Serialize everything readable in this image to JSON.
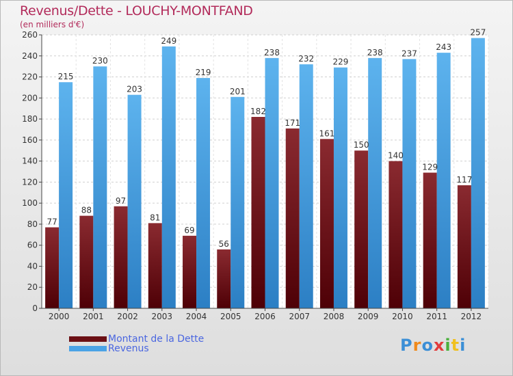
{
  "chart_data": {
    "type": "bar",
    "title": "Revenus/Dette - LOUCHY-MONTFAND",
    "subtitle": "(en milliers d'€)",
    "categories": [
      "2000",
      "2001",
      "2002",
      "2003",
      "2004",
      "2005",
      "2006",
      "2007",
      "2008",
      "2009",
      "2010",
      "2011",
      "2012"
    ],
    "series": [
      {
        "name": "Montant de la Dette",
        "color": "#6b0f14",
        "values": [
          77,
          88,
          97,
          81,
          69,
          56,
          182,
          171,
          161,
          150,
          140,
          129,
          117
        ]
      },
      {
        "name": "Revenus",
        "color": "#4aa3e6",
        "values": [
          215,
          230,
          203,
          249,
          219,
          201,
          238,
          232,
          229,
          238,
          237,
          243,
          257
        ]
      }
    ],
    "ylim": [
      0,
      260
    ],
    "ytick_step": 20,
    "grid": true,
    "legend": "bottom-left"
  },
  "logo": {
    "letters": [
      "P",
      "r",
      "o",
      "x",
      "i",
      "t",
      "i"
    ]
  },
  "colors": {
    "title": "#b22a5a",
    "legend_text": "#4a66e0"
  }
}
